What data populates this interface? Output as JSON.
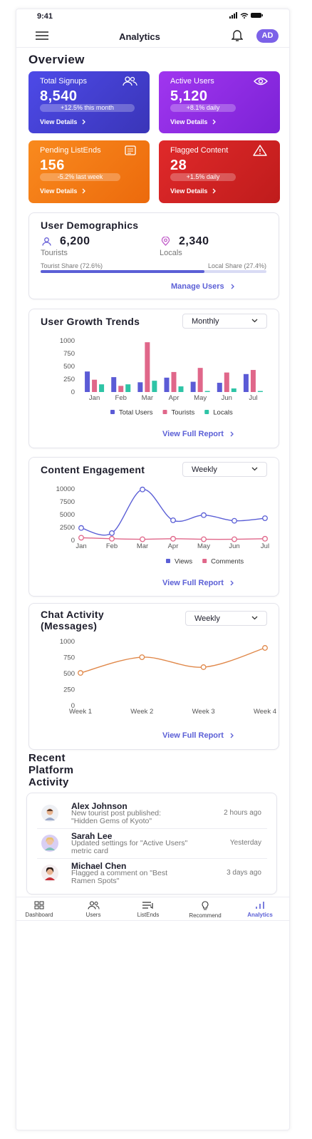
{
  "status_bar": {
    "time": "9:41"
  },
  "header": {
    "title": "Analytics",
    "avatar": "AD"
  },
  "overview": {
    "title": "Overview",
    "cards": [
      {
        "title": "Total Signups",
        "value": "8,540",
        "change": "+12.5% this month",
        "link": "View Details"
      },
      {
        "title": "Active Users",
        "value": "5,120",
        "change": "+8.1% daily",
        "link": "View Details"
      },
      {
        "title": "Pending ListEnds",
        "value": "156",
        "change": "-5.2% last week",
        "link": "View Details"
      },
      {
        "title": "Flagged Content",
        "value": "28",
        "change": "+1.5% daily",
        "link": "View Details"
      }
    ]
  },
  "demographics": {
    "title": "User Demographics",
    "tourists": {
      "value": "6,200",
      "label": "Tourists"
    },
    "locals": {
      "value": "2,340",
      "label": "Locals"
    },
    "tourist_share": "Tourist Share (72.6%)",
    "local_share": "Local Share (27.4%)",
    "share_value": 72.6,
    "link": "Manage Users"
  },
  "chart_data": [
    {
      "type": "bar",
      "title": "User Growth Trends",
      "period": "Monthly",
      "link": "View Full Report",
      "categories": [
        "Jan",
        "Feb",
        "Mar",
        "Apr",
        "May",
        "Jun",
        "Jul"
      ],
      "series": [
        {
          "name": "Total Users",
          "color": "#5b5bd6",
          "values": [
            400,
            290,
            190,
            280,
            200,
            180,
            350
          ]
        },
        {
          "name": "Tourists",
          "color": "#e0678a",
          "values": [
            240,
            120,
            970,
            390,
            470,
            380,
            430
          ]
        },
        {
          "name": "Locals",
          "color": "#2ec4a6",
          "values": [
            150,
            150,
            220,
            110,
            20,
            70,
            20
          ]
        }
      ],
      "ylim": [
        0,
        1000
      ],
      "yticks": [
        0,
        250,
        500,
        750,
        1000
      ]
    },
    {
      "type": "line",
      "title": "Content Engagement",
      "period": "Weekly",
      "link": "View Full Report",
      "categories": [
        "Jan",
        "Feb",
        "Mar",
        "Apr",
        "May",
        "Jun",
        "Jul"
      ],
      "series": [
        {
          "name": "Views",
          "color": "#5b5fd6",
          "values": [
            2400,
            1400,
            9900,
            3900,
            4900,
            3800,
            4300
          ]
        },
        {
          "name": "Comments",
          "color": "#e0678a",
          "values": [
            500,
            300,
            200,
            300,
            200,
            200,
            300
          ]
        }
      ],
      "ylim": [
        0,
        10000
      ],
      "yticks": [
        0,
        2500,
        5000,
        7500,
        10000
      ]
    },
    {
      "type": "line",
      "title": "Chat Activity (Messages)",
      "period": "Weekly",
      "link": "View Full Report",
      "categories": [
        "Week 1",
        "Week 2",
        "Week 3",
        "Week 4"
      ],
      "values": [
        510,
        755,
        600,
        900
      ],
      "color": "#e0884a",
      "ylim": [
        0,
        1000
      ],
      "yticks": [
        0,
        250,
        500,
        750,
        1000
      ]
    }
  ],
  "activity": {
    "title": "Recent Platform Activity",
    "items": [
      {
        "name": "Alex Johnson",
        "text": "New tourist post published: \"Hidden Gems of Kyoto\"",
        "time": "2 hours ago"
      },
      {
        "name": "Sarah Lee",
        "text": "Updated settings for \"Active Users\" metric card",
        "time": "Yesterday"
      },
      {
        "name": "Michael Chen",
        "text": "Flagged a comment on \"Best Ramen Spots\"",
        "time": "3 days ago"
      }
    ]
  },
  "nav": [
    "Dashboard",
    "Users",
    "ListEnds",
    "Recommend",
    "Analytics"
  ]
}
